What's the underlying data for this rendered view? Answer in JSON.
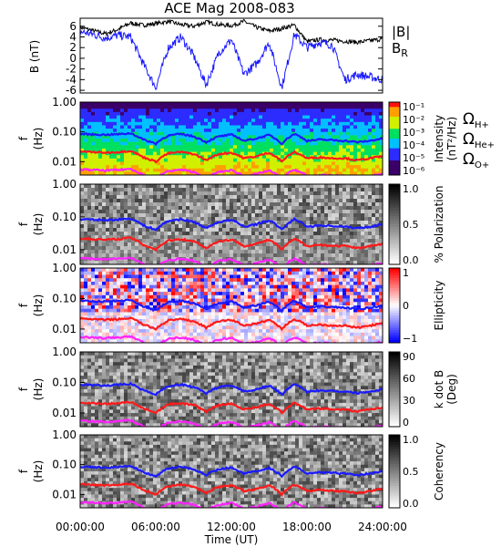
{
  "chart_data": [
    {
      "type": "line",
      "title": "ACE Mag 2008-083",
      "ylabel": "B (nT)",
      "legend": [
        {
          "label": "|B|",
          "color": "#000000"
        },
        {
          "label": "B",
          "sub": "R",
          "color": "#1a1aff"
        }
      ],
      "legend_position": "right",
      "ylim": [
        -6.5,
        7.5
      ],
      "yticks": [
        "6",
        "4",
        "2",
        "0",
        "-2",
        "-4",
        "-6"
      ],
      "ytick_values": [
        6,
        4,
        2,
        0,
        -2,
        -4,
        -6
      ],
      "x": [
        0,
        1,
        2,
        3,
        4,
        5,
        6,
        7,
        8,
        9,
        10,
        11,
        12,
        13,
        14,
        15,
        16,
        17,
        18,
        19,
        20,
        21,
        22,
        23,
        24
      ],
      "series": [
        {
          "name": "|B|",
          "color": "#000000",
          "values": [
            5.8,
            5.2,
            4.6,
            5.4,
            6.6,
            6.2,
            6.5,
            6.9,
            6.3,
            6.0,
            6.8,
            6.3,
            6.1,
            6.9,
            5.8,
            5.1,
            5.6,
            6.2,
            3.1,
            3.5,
            3.4,
            3.2,
            3.0,
            3.3,
            3.6
          ]
        },
        {
          "name": "B_R",
          "color": "#1a1aff",
          "values": [
            5.0,
            4.5,
            3.8,
            4.3,
            4.0,
            -1.0,
            -5.5,
            2.0,
            4.0,
            0.5,
            -5.0,
            1.0,
            3.5,
            -3.0,
            -1.0,
            3.0,
            -5.5,
            4.5,
            2.0,
            3.0,
            2.5,
            -4.0,
            -3.0,
            -3.5,
            -4.0
          ]
        }
      ]
    },
    {
      "type": "heatmap",
      "ylabel": "f (Hz)",
      "yticks": [
        "1.00",
        "0.10",
        "0.01"
      ],
      "colorbar_label": "Intensity (nT²/Hz)",
      "colorbar_ticks": [
        "10⁻¹",
        "10⁻²",
        "10⁻³",
        "10⁻⁴",
        "10⁻⁵",
        "10⁻⁶"
      ],
      "colormap": "rainbow",
      "legend": [
        {
          "label": "Ω",
          "sub": "H+",
          "color": "#1a1aff"
        },
        {
          "label": "Ω",
          "sub": "He+",
          "color": "#ff1a1a"
        },
        {
          "label": "Ω",
          "sub": "O+",
          "color": "#ff22ff"
        }
      ]
    },
    {
      "type": "heatmap",
      "ylabel": "f (Hz)",
      "yticks": [
        "1.00",
        "0.10",
        "0.01"
      ],
      "colorbar_label": "% Polarization",
      "colorbar_ticks": [
        "1.0",
        "0.5",
        "0.0"
      ],
      "colormap": "gray"
    },
    {
      "type": "heatmap",
      "ylabel": "f (Hz)",
      "yticks": [
        "1.00",
        "0.10",
        "0.01"
      ],
      "colorbar_label": "Ellipticity",
      "colorbar_ticks": [
        "1",
        "0",
        "−1"
      ],
      "colormap": "blue-white-red"
    },
    {
      "type": "heatmap",
      "ylabel": "f (Hz)",
      "yticks": [
        "1.00",
        "0.10",
        "0.01"
      ],
      "colorbar_label": "k dot B (Deg)",
      "colorbar_ticks": [
        "90",
        "60",
        "30",
        "0"
      ],
      "colormap": "gray"
    },
    {
      "type": "heatmap",
      "ylabel": "f (Hz)",
      "yticks": [
        "1.00",
        "0.10",
        "0.01"
      ],
      "colorbar_label": "Coherency",
      "colorbar_ticks": [
        "1.0",
        "0.5",
        "0.0"
      ],
      "colormap": "gray",
      "xlabel": "Time (UT)",
      "xticks": [
        "00:00:00",
        "06:00:00",
        "12:00:00",
        "18:00:00",
        "24:00:00"
      ]
    }
  ],
  "cyclotron_lines": {
    "H+": [
      0.085,
      0.082,
      0.08,
      0.083,
      0.09,
      0.055,
      0.04,
      0.075,
      0.085,
      0.07,
      0.045,
      0.07,
      0.08,
      0.05,
      0.06,
      0.078,
      0.04,
      0.085,
      0.05,
      0.055,
      0.053,
      0.05,
      0.045,
      0.05,
      0.06
    ],
    "He+": [
      0.022,
      0.021,
      0.02,
      0.021,
      0.023,
      0.014,
      0.01,
      0.019,
      0.021,
      0.018,
      0.011,
      0.018,
      0.02,
      0.013,
      0.015,
      0.02,
      0.01,
      0.021,
      0.013,
      0.014,
      0.013,
      0.013,
      0.011,
      0.013,
      0.015
    ],
    "O+": [
      0.0055,
      0.0053,
      0.005,
      0.0053,
      0.0057,
      0.0036,
      0.0027,
      0.0048,
      0.0053,
      0.0045,
      0.0029,
      0.0045,
      0.0051,
      0.0033,
      0.0038,
      0.005,
      0.0027,
      0.0054,
      0.0033,
      0.0035,
      0.0034,
      0.0033,
      0.0029,
      0.0033,
      0.0038
    ]
  }
}
